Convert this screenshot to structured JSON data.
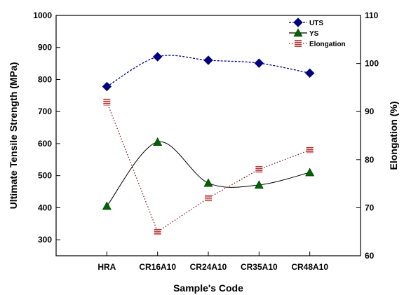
{
  "chart_data": {
    "type": "line",
    "categories": [
      "HRA",
      "CR16A10",
      "CR24A10",
      "CR35A10",
      "CR48A10"
    ],
    "xlabel": "Sample's Code",
    "ylabel": "Ultimate Tensile Strength (MPa)",
    "y2label": "Elongation (%)",
    "ylim": [
      250,
      1000
    ],
    "y2lim": [
      60,
      110
    ],
    "yticks": [
      300,
      400,
      500,
      600,
      700,
      800,
      900,
      1000
    ],
    "y2ticks": [
      60,
      70,
      80,
      90,
      100,
      110
    ],
    "grid": false,
    "legend_position": "top-right",
    "series": [
      {
        "name": "UTS",
        "axis": "left",
        "values": [
          778,
          871,
          860,
          851,
          820
        ],
        "color": "#000080",
        "marker": "diamond",
        "line_style": "dashed",
        "curve": "smooth"
      },
      {
        "name": "YS",
        "axis": "left",
        "values": [
          405,
          605,
          477,
          471,
          510
        ],
        "color": "#006400",
        "marker": "triangle",
        "line_style": "solid",
        "curve": "smooth"
      },
      {
        "name": "Elongation",
        "axis": "right",
        "values": [
          92,
          65,
          72,
          78,
          82
        ],
        "color": "#8b1a1a",
        "marker": "square-striped",
        "line_style": "dotted",
        "curve": "straight"
      }
    ]
  }
}
